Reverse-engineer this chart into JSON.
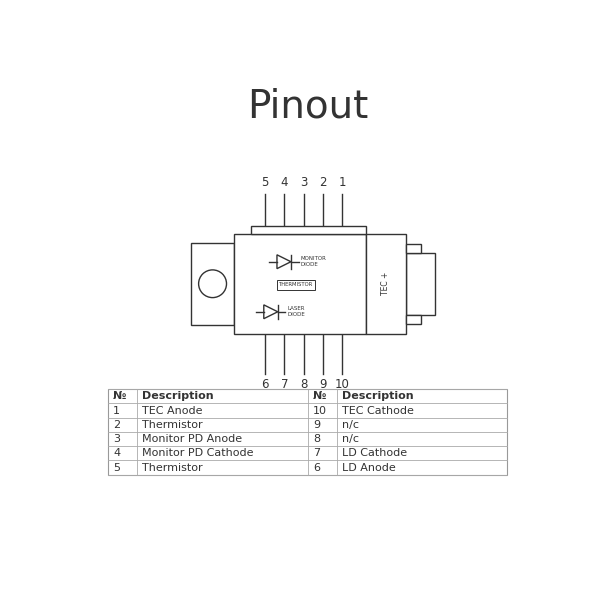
{
  "title": "Pinout",
  "title_fontsize": 28,
  "bg_color": "#ffffff",
  "line_color": "#333333",
  "table_left": [
    [
      "1",
      "TEC Anode"
    ],
    [
      "2",
      "Thermistor"
    ],
    [
      "3",
      "Monitor PD Anode"
    ],
    [
      "4",
      "Monitor PD Cathode"
    ],
    [
      "5",
      "Thermistor"
    ]
  ],
  "table_right": [
    [
      "10",
      "TEC Cathode"
    ],
    [
      "9",
      "n/c"
    ],
    [
      "8",
      "n/c"
    ],
    [
      "7",
      "LD Cathode"
    ],
    [
      "6",
      "LD Anode"
    ]
  ],
  "pin_top_labels": [
    "5",
    "4",
    "3",
    "2",
    "1"
  ],
  "pin_bottom_labels": [
    "6",
    "7",
    "8",
    "9",
    "10"
  ]
}
